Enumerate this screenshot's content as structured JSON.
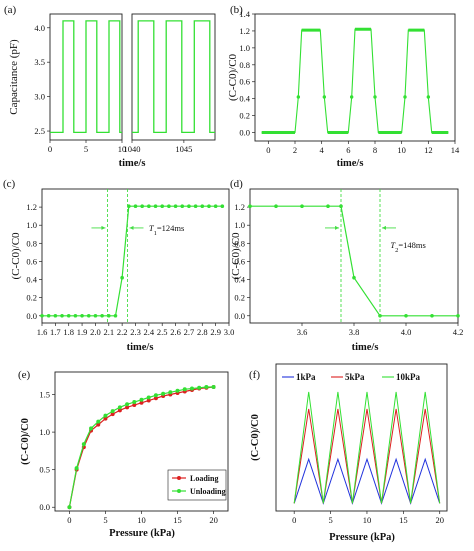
{
  "colors": {
    "green": "#33e033",
    "red": "#dd2020",
    "blue": "#2233dd",
    "dash": "#44dd44"
  },
  "chart_data": [
    {
      "panel_label": "(a)",
      "type": "line",
      "ylabel": "Capacitance (pF)",
      "xlabel": "time/s",
      "ylim": [
        2.37,
        4.2
      ],
      "yticks": [
        "2.5",
        "3.0",
        "3.5",
        "4.0"
      ],
      "ytick_values": [
        2.5,
        3.0,
        3.5,
        4.0
      ],
      "segments": [
        {
          "xlim": [
            0,
            10
          ],
          "xticks": [
            "0",
            "5",
            "10"
          ],
          "xtick_values": [
            0,
            5,
            10
          ]
        },
        {
          "xlim": [
            1040,
            1048
          ],
          "xticks": [
            "1040",
            "1045"
          ],
          "xtick_values": [
            1040,
            1045
          ]
        }
      ],
      "low": 2.48,
      "high": 4.1,
      "pulses": [
        [
          1.8,
          3.3
        ],
        [
          5.0,
          6.5
        ],
        [
          8.2,
          9.7
        ],
        [
          1040.6,
          1042.1
        ],
        [
          1043.3,
          1044.8
        ],
        [
          1046.0,
          1047.5
        ]
      ],
      "series": [
        {
          "color": "#33e033"
        }
      ]
    },
    {
      "panel_label": "(b)",
      "type": "line",
      "ylabel": "(C-C0)/C0",
      "xlabel": "time/s",
      "xlim": [
        -1,
        14
      ],
      "ylim": [
        -0.1,
        1.4
      ],
      "xticks": [
        "0",
        "2",
        "4",
        "6",
        "8",
        "10",
        "12",
        "14"
      ],
      "xtick_values": [
        0,
        2,
        4,
        6,
        8,
        10,
        12,
        14
      ],
      "yticks": [
        "0.0",
        "0.2",
        "0.4",
        "0.6",
        "0.8",
        "1.0",
        "1.2",
        "1.4"
      ],
      "ytick_values": [
        0,
        0.2,
        0.4,
        0.6,
        0.8,
        1.0,
        1.2,
        1.4
      ],
      "x": [
        -0.5,
        2.0,
        2.25,
        2.5,
        3.9,
        4.2,
        4.45,
        6.0,
        6.25,
        6.5,
        7.7,
        8.0,
        8.25,
        10.0,
        10.25,
        10.5,
        11.7,
        12.0,
        12.25,
        13.5
      ],
      "y": [
        0,
        0,
        0.42,
        1.21,
        1.21,
        0.42,
        0,
        0,
        0.42,
        1.22,
        1.22,
        0.42,
        0,
        0,
        0.42,
        1.21,
        1.21,
        0.42,
        0,
        0
      ],
      "series": [
        {
          "color": "#33e033"
        }
      ]
    },
    {
      "panel_label": "(c)",
      "type": "line",
      "ylabel": "(C-C0)/C0",
      "xlabel": "time/s",
      "xlim": [
        1.6,
        3.0
      ],
      "ylim": [
        -0.08,
        1.4
      ],
      "xticks": [
        "1.6",
        "1.7",
        "1.8",
        "1.9",
        "2.0",
        "2.1",
        "2.2",
        "2.3",
        "2.4",
        "2.5",
        "2.6",
        "2.7",
        "2.8",
        "2.9",
        "3.0"
      ],
      "xtick_values": [
        1.6,
        1.7,
        1.8,
        1.9,
        2.0,
        2.1,
        2.2,
        2.3,
        2.4,
        2.5,
        2.6,
        2.7,
        2.8,
        2.9,
        3.0
      ],
      "yticks": [
        "0.0",
        "0.2",
        "0.4",
        "0.6",
        "0.8",
        "1.0",
        "1.2"
      ],
      "ytick_values": [
        0,
        0.2,
        0.4,
        0.6,
        0.8,
        1.0,
        1.2
      ],
      "x": [
        1.6,
        1.65,
        1.7,
        1.75,
        1.8,
        1.85,
        1.9,
        1.95,
        2.0,
        2.05,
        2.1,
        2.15,
        2.2,
        2.25,
        2.3,
        2.35,
        2.4,
        2.45,
        2.5,
        2.55,
        2.6,
        2.65,
        2.7,
        2.75,
        2.8,
        2.85,
        2.9,
        2.95
      ],
      "y": [
        0,
        0,
        0,
        0,
        0,
        0,
        0,
        0,
        0,
        0,
        0,
        0,
        0.42,
        1.21,
        1.21,
        1.21,
        1.21,
        1.21,
        1.21,
        1.21,
        1.21,
        1.21,
        1.21,
        1.21,
        1.21,
        1.21,
        1.21,
        1.21
      ],
      "vlines": [
        2.09,
        2.24
      ],
      "arrow_y": 0.97,
      "annotation": {
        "sym": "T",
        "sub": "1",
        "text": "=124ms",
        "x": 2.4,
        "y": 0.97
      },
      "series": [
        {
          "color": "#33e033"
        }
      ]
    },
    {
      "panel_label": "(d)",
      "type": "line",
      "ylabel": "(C-C0)/C0",
      "xlabel": "time/s",
      "xlim": [
        3.4,
        4.2
      ],
      "ylim": [
        -0.08,
        1.4
      ],
      "xticks": [
        "3.6",
        "3.8",
        "4.0",
        "4.2"
      ],
      "xtick_values": [
        3.6,
        3.8,
        4.0,
        4.2
      ],
      "yticks": [
        "0.0",
        "0.2",
        "0.4",
        "0.6",
        "0.8",
        "1.0",
        "1.2"
      ],
      "ytick_values": [
        0,
        0.2,
        0.4,
        0.6,
        0.8,
        1.0,
        1.2
      ],
      "x": [
        3.4,
        3.5,
        3.6,
        3.7,
        3.75,
        3.8,
        3.9,
        4.0,
        4.1,
        4.2
      ],
      "y": [
        1.21,
        1.21,
        1.21,
        1.21,
        1.21,
        0.42,
        0,
        0,
        0,
        0
      ],
      "vlines": [
        3.75,
        3.9
      ],
      "arrow_y": 0.97,
      "annotation": {
        "sym": "T",
        "sub": "2",
        "text": "=148ms",
        "x": 3.94,
        "y": 0.78
      },
      "series": [
        {
          "color": "#33e033"
        }
      ]
    },
    {
      "panel_label": "(e)",
      "type": "line",
      "ylabel": "(C-C0)/C0",
      "xlabel": "Pressure (kPa)",
      "xlim": [
        -2,
        22
      ],
      "ylim": [
        -0.05,
        1.8
      ],
      "xticks": [
        "0",
        "5",
        "10",
        "15",
        "20"
      ],
      "xtick_values": [
        0,
        5,
        10,
        15,
        20
      ],
      "yticks": [
        "0.0",
        "0.5",
        "1.0",
        "1.5"
      ],
      "ytick_values": [
        0,
        0.5,
        1.0,
        1.5
      ],
      "x": [
        0,
        1,
        2,
        3,
        4,
        5,
        6,
        7,
        8,
        9,
        10,
        11,
        12,
        13,
        14,
        15,
        16,
        17,
        18,
        19,
        20
      ],
      "series": [
        {
          "name": "Loading",
          "color": "#dd2020",
          "values": [
            0,
            0.5,
            0.8,
            1.02,
            1.1,
            1.18,
            1.24,
            1.29,
            1.33,
            1.36,
            1.39,
            1.42,
            1.45,
            1.48,
            1.5,
            1.52,
            1.54,
            1.56,
            1.58,
            1.59,
            1.6
          ]
        },
        {
          "name": "Unloading",
          "color": "#33e033",
          "values": [
            0,
            0.52,
            0.84,
            1.05,
            1.14,
            1.22,
            1.28,
            1.33,
            1.37,
            1.4,
            1.43,
            1.46,
            1.49,
            1.51,
            1.53,
            1.55,
            1.57,
            1.58,
            1.59,
            1.6,
            1.6
          ]
        }
      ],
      "legend": "bottom-right"
    },
    {
      "panel_label": "(f)",
      "type": "line",
      "ylabel": "(C-C0)/C0",
      "xlabel": "Pressure (kPa)",
      "xlim": [
        -2.5,
        21
      ],
      "ylim": [
        -0.1,
        1.8
      ],
      "xticks": [
        "0",
        "5",
        "10",
        "15",
        "20"
      ],
      "xtick_values": [
        0,
        5,
        10,
        15,
        20
      ],
      "period": 4,
      "start": 0,
      "count": 5,
      "series": [
        {
          "name": "1kPa",
          "color": "#2233dd",
          "peak": 0.57
        },
        {
          "name": "5kPa",
          "color": "#dd2020",
          "peak": 1.22
        },
        {
          "name": "10kPa",
          "color": "#33e033",
          "peak": 1.44
        }
      ],
      "legend": "top"
    }
  ]
}
